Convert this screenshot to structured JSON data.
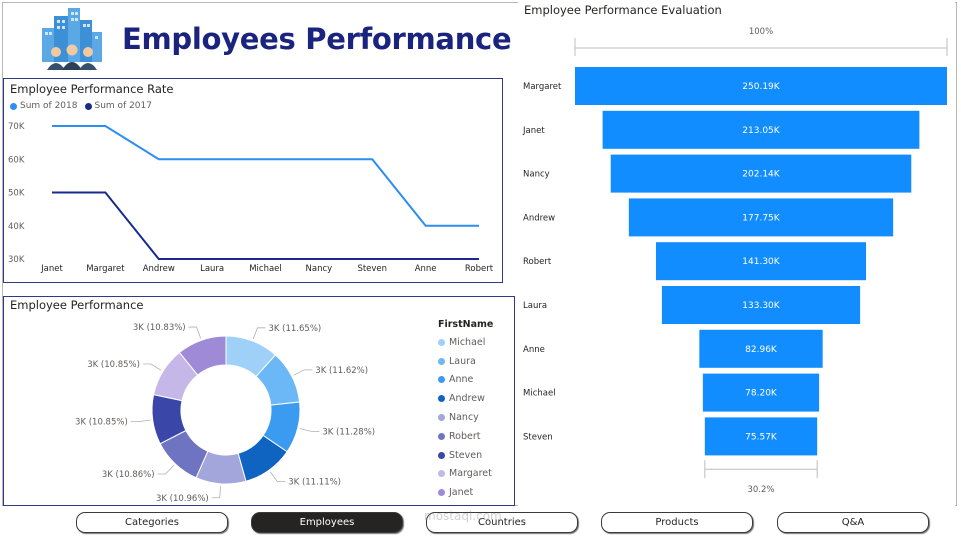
{
  "header": {
    "title": "Employees Performance",
    "logo_icon": "office-buildings-people-icon"
  },
  "line_chart": {
    "title": "Employee Performance Rate",
    "legend": [
      {
        "name": "Sum of 2018",
        "color": "#2b8ef0"
      },
      {
        "name": "Sum of 2017",
        "color": "#1a2a8c"
      }
    ]
  },
  "donut_chart": {
    "title": "Employee Performance",
    "legend_title": "FirstName"
  },
  "funnel_chart": {
    "title": "Employee Performance Evaluation",
    "top_percent": "100%",
    "bottom_percent": "30.2%",
    "bar_color": "#118dff"
  },
  "nav": {
    "buttons": [
      {
        "label": "Categories",
        "active": false
      },
      {
        "label": "Employees",
        "active": true
      },
      {
        "label": "Countries",
        "active": false
      },
      {
        "label": "Products",
        "active": false
      },
      {
        "label": "Q&A",
        "active": false
      }
    ]
  },
  "watermark": "mostaql.com",
  "chart_data": [
    {
      "type": "line",
      "title": "Employee Performance Rate",
      "x": [
        "Janet",
        "Margaret",
        "Andrew",
        "Laura",
        "Michael",
        "Nancy",
        "Steven",
        "Anne",
        "Robert"
      ],
      "yticks": [
        "30K",
        "40K",
        "50K",
        "60K",
        "70K"
      ],
      "ylim": [
        30000,
        70000
      ],
      "series": [
        {
          "name": "Sum of 2018",
          "color": "#2b8ef0",
          "values": [
            70000,
            70000,
            60000,
            60000,
            60000,
            60000,
            60000,
            40000,
            40000
          ]
        },
        {
          "name": "Sum of 2017",
          "color": "#1a2a8c",
          "values": [
            50000,
            50000,
            30000,
            30000,
            30000,
            30000,
            30000,
            30000,
            30000
          ]
        }
      ]
    },
    {
      "type": "pie",
      "title": "Employee Performance",
      "legend_title": "FirstName",
      "slices": [
        {
          "name": "Michael",
          "label": "3K (11.65%)",
          "percent": 11.65,
          "color": "#9fd0f8"
        },
        {
          "name": "Laura",
          "label": "3K (11.62%)",
          "percent": 11.62,
          "color": "#6cb8f6"
        },
        {
          "name": "Anne",
          "label": "3K (11.28%)",
          "percent": 11.28,
          "color": "#3a9bf0"
        },
        {
          "name": "Andrew",
          "label": "3K (11.11%)",
          "percent": 11.11,
          "color": "#0e64c0"
        },
        {
          "name": "Nancy",
          "label": "3K (10.96%)",
          "percent": 10.96,
          "color": "#a3a6db"
        },
        {
          "name": "Robert",
          "label": "3K (10.86%)",
          "percent": 10.86,
          "color": "#6e74c2"
        },
        {
          "name": "Steven",
          "label": "3K (10.85%)",
          "percent": 10.85,
          "color": "#3a46a8"
        },
        {
          "name": "Margaret",
          "label": "3K (10.85%)",
          "percent": 10.85,
          "color": "#c5b7e8"
        },
        {
          "name": "Janet",
          "label": "3K (10.83%)",
          "percent": 10.83,
          "color": "#9e8ad6"
        }
      ]
    },
    {
      "type": "bar",
      "title": "Employee Performance Evaluation",
      "orientation": "funnel",
      "categories": [
        "Margaret",
        "Janet",
        "Nancy",
        "Andrew",
        "Robert",
        "Laura",
        "Anne",
        "Michael",
        "Steven"
      ],
      "values": [
        250190,
        213050,
        202140,
        177750,
        141300,
        133300,
        82960,
        78200,
        75570
      ],
      "labels": [
        "250.19K",
        "213.05K",
        "202.14K",
        "177.75K",
        "141.30K",
        "133.30K",
        "82.96K",
        "78.20K",
        "75.57K"
      ]
    }
  ]
}
